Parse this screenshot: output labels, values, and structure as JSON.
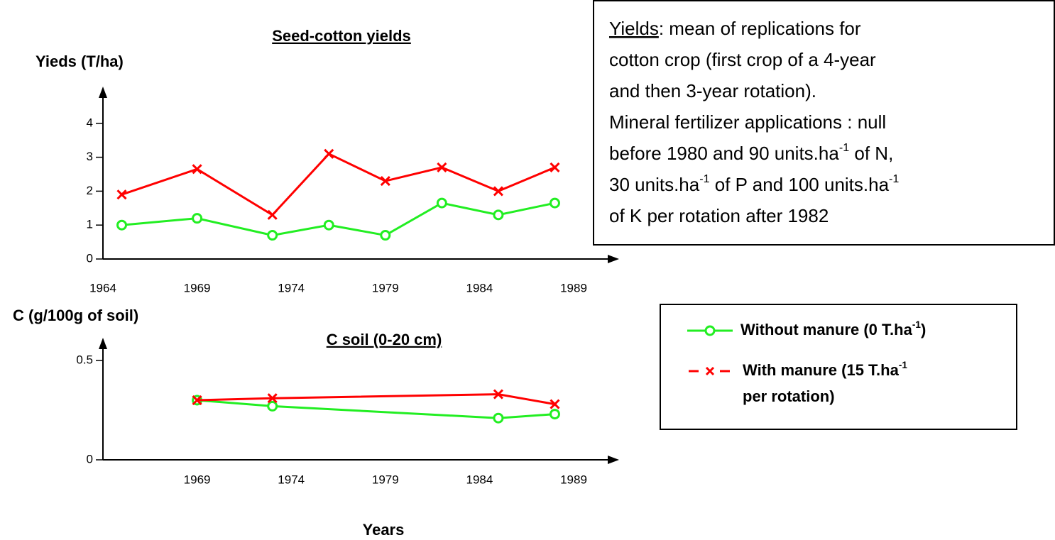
{
  "chart_data": [
    {
      "type": "line",
      "title": "Seed-cotton yields",
      "y_label": "Yieds (T/ha)",
      "xlim": [
        1964,
        1989
      ],
      "xticks": [
        1964,
        1969,
        1974,
        1979,
        1984,
        1989
      ],
      "ylim": [
        0,
        5
      ],
      "yticks": [
        0,
        1,
        2,
        3,
        4
      ],
      "series": [
        {
          "name": [
            [
              "Without manure (0 T.ha",
              "-1",
              ")"
            ]
          ],
          "color": "#22ee22",
          "marker": "circle",
          "x": [
            1965,
            1969,
            1973,
            1976,
            1979,
            1982,
            1985,
            1988
          ],
          "values": [
            1.0,
            1.2,
            0.7,
            1.0,
            0.7,
            1.65,
            1.3,
            1.65
          ]
        },
        {
          "name": [
            [
              "With manure (15 T.ha",
              "-1"
            ],
            [
              "per rotation)"
            ]
          ],
          "color": "#ff0000",
          "marker": "x",
          "x": [
            1965,
            1969,
            1973,
            1976,
            1979,
            1982,
            1985,
            1988
          ],
          "values": [
            1.9,
            2.65,
            1.3,
            3.1,
            2.3,
            2.7,
            2.0,
            2.7
          ]
        }
      ]
    },
    {
      "type": "line",
      "title": "C soil (0-20 cm)",
      "y_label": "C (g/100g of soil)",
      "x_label": "Years",
      "xlim": [
        1964,
        1989
      ],
      "xticks": [
        1969,
        1974,
        1979,
        1984,
        1989
      ],
      "ylim": [
        0,
        0.6
      ],
      "yticks": [
        0,
        0.5
      ],
      "series": [
        {
          "color": "#22ee22",
          "marker": "circle",
          "x": [
            1969,
            1973,
            1985,
            1988
          ],
          "values": [
            0.3,
            0.27,
            0.21,
            0.23
          ]
        },
        {
          "color": "#ff0000",
          "marker": "x",
          "x": [
            1969,
            1973,
            1985,
            1988
          ],
          "values": [
            0.3,
            0.31,
            0.33,
            0.28
          ]
        }
      ]
    }
  ],
  "note": {
    "heading": "Yields",
    "lines": [
      [
        ": mean of replications for"
      ],
      [
        "cotton crop (first crop of a 4-year"
      ],
      [
        "and then 3-year rotation)."
      ],
      [
        "Mineral fertilizer applications : null"
      ],
      [
        "before 1980 and 90 units.ha",
        "-1",
        " of N,"
      ],
      [
        "30 units.ha",
        "-1",
        " of P and 100 units.ha",
        "-1"
      ],
      [
        "of K per rotation after 1982"
      ]
    ]
  }
}
